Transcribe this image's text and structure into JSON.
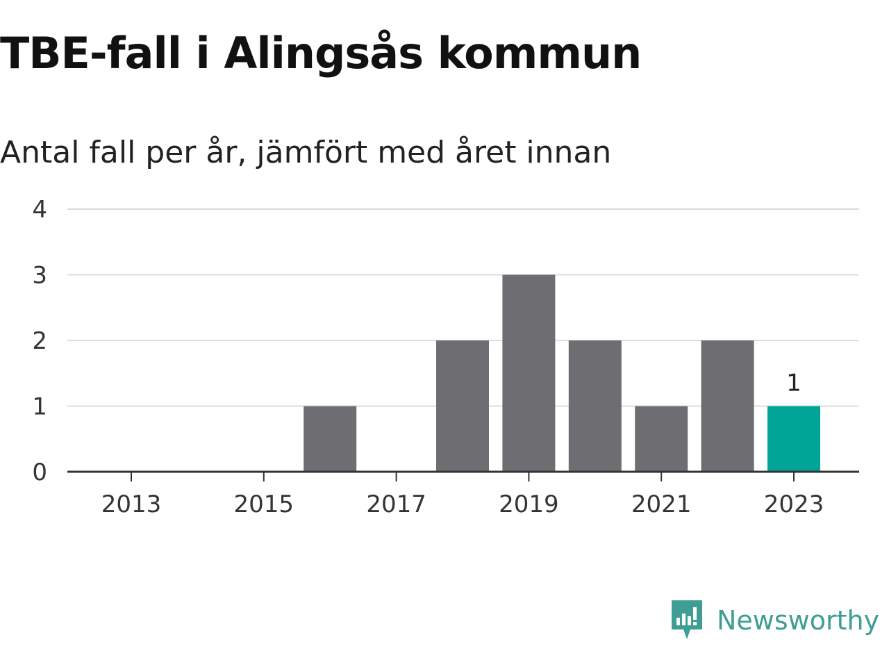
{
  "title": "TBE-fall i Alingsås kommun",
  "subtitle": "Antal fall per år, jämfört med året innan",
  "brand": {
    "name": "Newsworthy",
    "icon": "newsworthy-logo-icon",
    "color": "#3f9e93"
  },
  "chart_data": {
    "type": "bar",
    "categories": [
      "2013",
      "2014",
      "2015",
      "2016",
      "2017",
      "2018",
      "2019",
      "2020",
      "2021",
      "2022",
      "2023"
    ],
    "values": [
      0,
      0,
      0,
      1,
      0,
      2,
      3,
      2,
      1,
      2,
      1
    ],
    "xticks": [
      "2013",
      "2015",
      "2017",
      "2019",
      "2021",
      "2023"
    ],
    "yticks": [
      0,
      1,
      2,
      3,
      4
    ],
    "ylim": [
      0,
      4
    ],
    "grid": true,
    "colors": {
      "bar": "#6e6d72",
      "highlight": "#00a597",
      "grid": "#dcdcdc",
      "axis": "#333333"
    },
    "highlight": {
      "category": "2023",
      "label": "1"
    }
  }
}
